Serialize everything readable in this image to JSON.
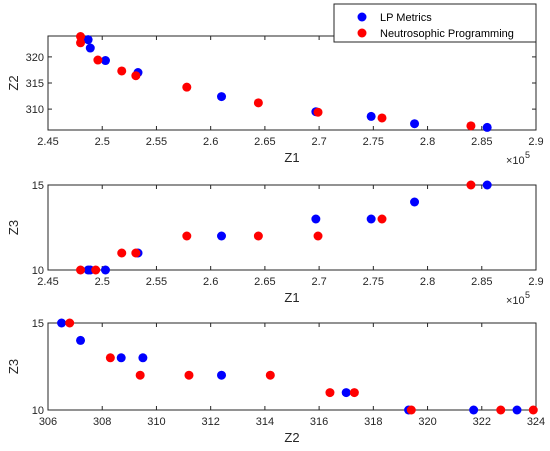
{
  "colors": {
    "lp": "#0000ff",
    "neutro": "#ff0000",
    "axis": "#262626"
  },
  "legend": {
    "placement": "top-right",
    "entries": [
      "LP Metrics",
      "Neutrosophic Programming"
    ]
  },
  "chart_data": [
    {
      "type": "scatter",
      "xlabel": "Z1",
      "ylabel": "Z2",
      "x_exponent_label": "×10",
      "x_exponent_power": "5",
      "xlim": [
        2.45,
        2.9
      ],
      "ylim": [
        306,
        324
      ],
      "xticks": [
        2.45,
        2.5,
        2.55,
        2.6,
        2.65,
        2.7,
        2.75,
        2.8,
        2.85,
        2.9
      ],
      "yticks": [
        310,
        315,
        320
      ],
      "xtick_labels": [
        "2.45",
        "2.5",
        "2.55",
        "2.6",
        "2.65",
        "2.7",
        "2.75",
        "2.8",
        "2.85",
        "2.9"
      ],
      "ytick_labels": [
        "310",
        "315",
        "320"
      ],
      "grid": false,
      "series": [
        {
          "name": "LP Metrics",
          "x": [
            2.487,
            2.489,
            2.503,
            2.533,
            2.61,
            2.697,
            2.748,
            2.788,
            2.855
          ],
          "y": [
            323.3,
            321.7,
            319.3,
            317.0,
            312.4,
            309.5,
            308.6,
            307.2,
            306.5
          ]
        },
        {
          "name": "Neutrosophic Programming",
          "x": [
            2.48,
            2.48,
            2.496,
            2.518,
            2.531,
            2.578,
            2.644,
            2.699,
            2.758,
            2.84
          ],
          "y": [
            323.9,
            322.7,
            319.4,
            317.3,
            316.4,
            314.2,
            311.2,
            309.4,
            308.3,
            306.8
          ]
        }
      ]
    },
    {
      "type": "scatter",
      "xlabel": "Z1",
      "ylabel": "Z3",
      "x_exponent_label": "×10",
      "x_exponent_power": "5",
      "xlim": [
        2.45,
        2.9
      ],
      "ylim": [
        10,
        15
      ],
      "xticks": [
        2.45,
        2.5,
        2.55,
        2.6,
        2.65,
        2.7,
        2.75,
        2.8,
        2.85,
        2.9
      ],
      "yticks": [
        10,
        15
      ],
      "xtick_labels": [
        "2.45",
        "2.5",
        "2.55",
        "2.6",
        "2.65",
        "2.7",
        "2.75",
        "2.8",
        "2.85",
        "2.9"
      ],
      "ytick_labels": [
        "10",
        "15"
      ],
      "grid": false,
      "series": [
        {
          "name": "LP Metrics",
          "x": [
            2.487,
            2.489,
            2.503,
            2.533,
            2.61,
            2.697,
            2.748,
            2.788,
            2.855
          ],
          "y": [
            10,
            10,
            10,
            11,
            12,
            13,
            13,
            14,
            15
          ]
        },
        {
          "name": "Neutrosophic Programming",
          "x": [
            2.48,
            2.494,
            2.518,
            2.531,
            2.578,
            2.644,
            2.699,
            2.758,
            2.84
          ],
          "y": [
            10,
            10,
            11,
            11,
            12,
            12,
            12,
            13,
            15
          ]
        }
      ]
    },
    {
      "type": "scatter",
      "xlabel": "Z2",
      "ylabel": "Z3",
      "xlim": [
        306,
        324
      ],
      "ylim": [
        10,
        15
      ],
      "xticks": [
        306,
        308,
        310,
        312,
        314,
        316,
        318,
        320,
        322,
        324
      ],
      "yticks": [
        10,
        15
      ],
      "xtick_labels": [
        "306",
        "308",
        "310",
        "312",
        "314",
        "316",
        "318",
        "320",
        "322",
        "324"
      ],
      "ytick_labels": [
        "10",
        "15"
      ],
      "grid": false,
      "series": [
        {
          "name": "LP Metrics",
          "x": [
            306.5,
            307.2,
            308.7,
            309.5,
            312.4,
            317.0,
            319.3,
            321.7,
            323.3
          ],
          "y": [
            15,
            14,
            13,
            13,
            12,
            11,
            10,
            10,
            10
          ]
        },
        {
          "name": "Neutrosophic Programming",
          "x": [
            306.8,
            308.3,
            309.4,
            311.2,
            314.2,
            316.4,
            317.3,
            319.4,
            322.7,
            323.9
          ],
          "y": [
            15,
            13,
            12,
            12,
            12,
            11,
            11,
            10,
            10,
            10
          ]
        }
      ]
    }
  ]
}
